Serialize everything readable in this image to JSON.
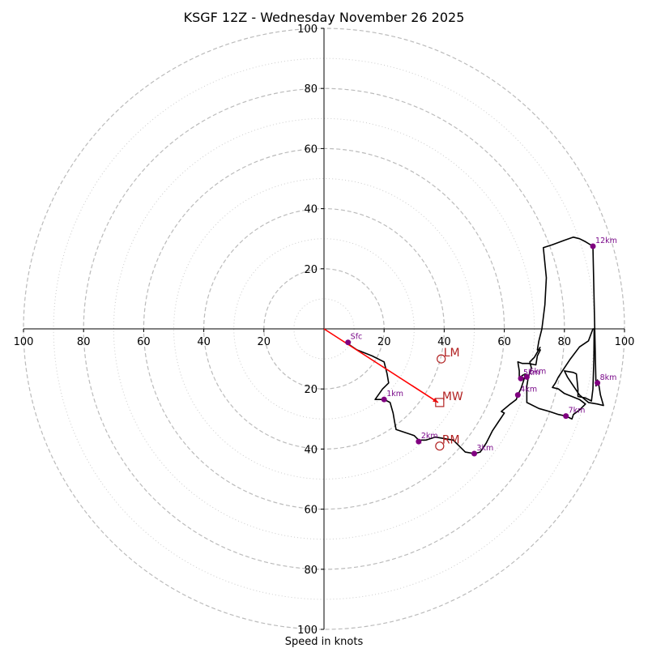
{
  "chart_data": {
    "type": "scatter",
    "title": "KSGF 12Z - Wednesday November 26 2025",
    "xlabel": "Speed in knots",
    "ylabel": "",
    "xlim": [
      -100,
      100
    ],
    "ylim": [
      -100,
      100
    ],
    "rings_dashed": [
      20,
      40,
      60,
      80,
      100
    ],
    "rings_dotted": [
      10,
      30,
      50,
      70,
      90
    ],
    "x_tick_labels": [
      "100",
      "80",
      "60",
      "40",
      "20",
      "20",
      "40",
      "60",
      "80",
      "100"
    ],
    "y_tick_labels": [
      "100",
      "80",
      "60",
      "40",
      "20",
      "20",
      "40",
      "60",
      "80",
      "100"
    ],
    "hodograph_trace": [
      [
        8,
        -5
      ],
      [
        11,
        -7
      ],
      [
        16,
        -9
      ],
      [
        20,
        -11
      ],
      [
        21,
        -15
      ],
      [
        21.5,
        -18
      ],
      [
        19.5,
        -20
      ],
      [
        17,
        -23.5
      ],
      [
        20,
        -23.5
      ],
      [
        22,
        -24.5
      ],
      [
        23,
        -28
      ],
      [
        23.5,
        -31
      ],
      [
        24,
        -33.5
      ],
      [
        27,
        -34.5
      ],
      [
        30,
        -35.5
      ],
      [
        31.5,
        -37
      ],
      [
        34,
        -37
      ],
      [
        37,
        -36
      ],
      [
        40,
        -36.5
      ],
      [
        43,
        -37
      ],
      [
        45,
        -39
      ],
      [
        47,
        -41
      ],
      [
        50,
        -41.5
      ],
      [
        52,
        -41
      ],
      [
        54,
        -38
      ],
      [
        56,
        -34
      ],
      [
        58,
        -31
      ],
      [
        60,
        -28
      ],
      [
        59,
        -27.5
      ],
      [
        62,
        -25
      ],
      [
        64,
        -23.5
      ],
      [
        64.5,
        -22
      ],
      [
        65.5,
        -20
      ],
      [
        66.5,
        -17
      ],
      [
        67,
        -15
      ],
      [
        66,
        -15.5
      ],
      [
        65,
        -16.5
      ],
      [
        65,
        -14
      ],
      [
        64.5,
        -11
      ],
      [
        66,
        -11.5
      ],
      [
        68,
        -11.5
      ],
      [
        70.5,
        -12
      ],
      [
        71,
        -9
      ],
      [
        72,
        -7
      ],
      [
        71,
        -7
      ],
      [
        71.5,
        -4
      ],
      [
        72.5,
        0
      ],
      [
        73.5,
        8
      ],
      [
        74,
        17
      ],
      [
        73,
        27
      ],
      [
        76,
        28
      ],
      [
        80,
        29.5
      ],
      [
        83,
        30.5
      ],
      [
        85,
        30
      ],
      [
        87,
        29
      ],
      [
        89.5,
        27.5
      ],
      [
        90.5,
        -19
      ],
      [
        91,
        -17
      ],
      [
        91.5,
        -19
      ],
      [
        92,
        -22
      ],
      [
        93,
        -25.5
      ],
      [
        91,
        -25
      ],
      [
        88,
        -24.5
      ],
      [
        85,
        -22
      ],
      [
        83,
        -19
      ],
      [
        81,
        -16
      ],
      [
        80,
        -14
      ],
      [
        83,
        -14.5
      ],
      [
        84,
        -15
      ],
      [
        84.5,
        -20
      ],
      [
        84.5,
        -22.5
      ],
      [
        87,
        -23
      ],
      [
        89,
        -24
      ],
      [
        89.5,
        -20
      ],
      [
        89.8,
        -10
      ],
      [
        89.9,
        0
      ],
      [
        89.5,
        0
      ],
      [
        88,
        -4
      ],
      [
        85,
        -6
      ],
      [
        82,
        -10
      ],
      [
        80,
        -13
      ],
      [
        78,
        -16
      ],
      [
        77,
        -18
      ],
      [
        76,
        -19.5
      ],
      [
        78,
        -20
      ],
      [
        80,
        -21.5
      ],
      [
        85,
        -23.5
      ],
      [
        87,
        -25
      ],
      [
        85,
        -27
      ],
      [
        83,
        -28.5
      ],
      [
        82.5,
        -30
      ],
      [
        80.5,
        -29
      ],
      [
        78,
        -28.5
      ],
      [
        75,
        -27.5
      ],
      [
        71.5,
        -26.5
      ],
      [
        67.5,
        -24.5
      ],
      [
        67.5,
        -22
      ],
      [
        67.5,
        -19
      ],
      [
        68,
        -16
      ],
      [
        69,
        -13
      ],
      [
        68.5,
        -11
      ],
      [
        70,
        -9.5
      ],
      [
        72,
        -6
      ]
    ],
    "height_markers": [
      {
        "label": "Sfc",
        "x": 8,
        "y": -4.5
      },
      {
        "label": "1km",
        "x": 20,
        "y": -23.5
      },
      {
        "label": "2km",
        "x": 31.5,
        "y": -37.5
      },
      {
        "label": "3km",
        "x": 50,
        "y": -41.5
      },
      {
        "label": "4km",
        "x": 64.5,
        "y": -22
      },
      {
        "label": "5km",
        "x": 65.5,
        "y": -16.5
      },
      {
        "label": "6km",
        "x": 67.5,
        "y": -16
      },
      {
        "label": "7km",
        "x": 80.5,
        "y": -29
      },
      {
        "label": "8km",
        "x": 91,
        "y": -18
      },
      {
        "label": "12km",
        "x": 89.5,
        "y": 27.5
      }
    ],
    "storm_motion": [
      {
        "label": "LM",
        "x": 39,
        "y": -10,
        "shape": "circle"
      },
      {
        "label": "MW",
        "x": 38.5,
        "y": -24.5,
        "shape": "square"
      },
      {
        "label": "RM",
        "x": 38.5,
        "y": -39,
        "shape": "circle"
      }
    ],
    "mean_wind_vector": {
      "x": 38,
      "y": -24.5
    }
  },
  "colors": {
    "trace": "#000000",
    "marker": "#800080",
    "marker_label": "#7a0a8a",
    "storm": "#b22222",
    "vector": "#ff0000",
    "ring": "#bbbbbb"
  }
}
